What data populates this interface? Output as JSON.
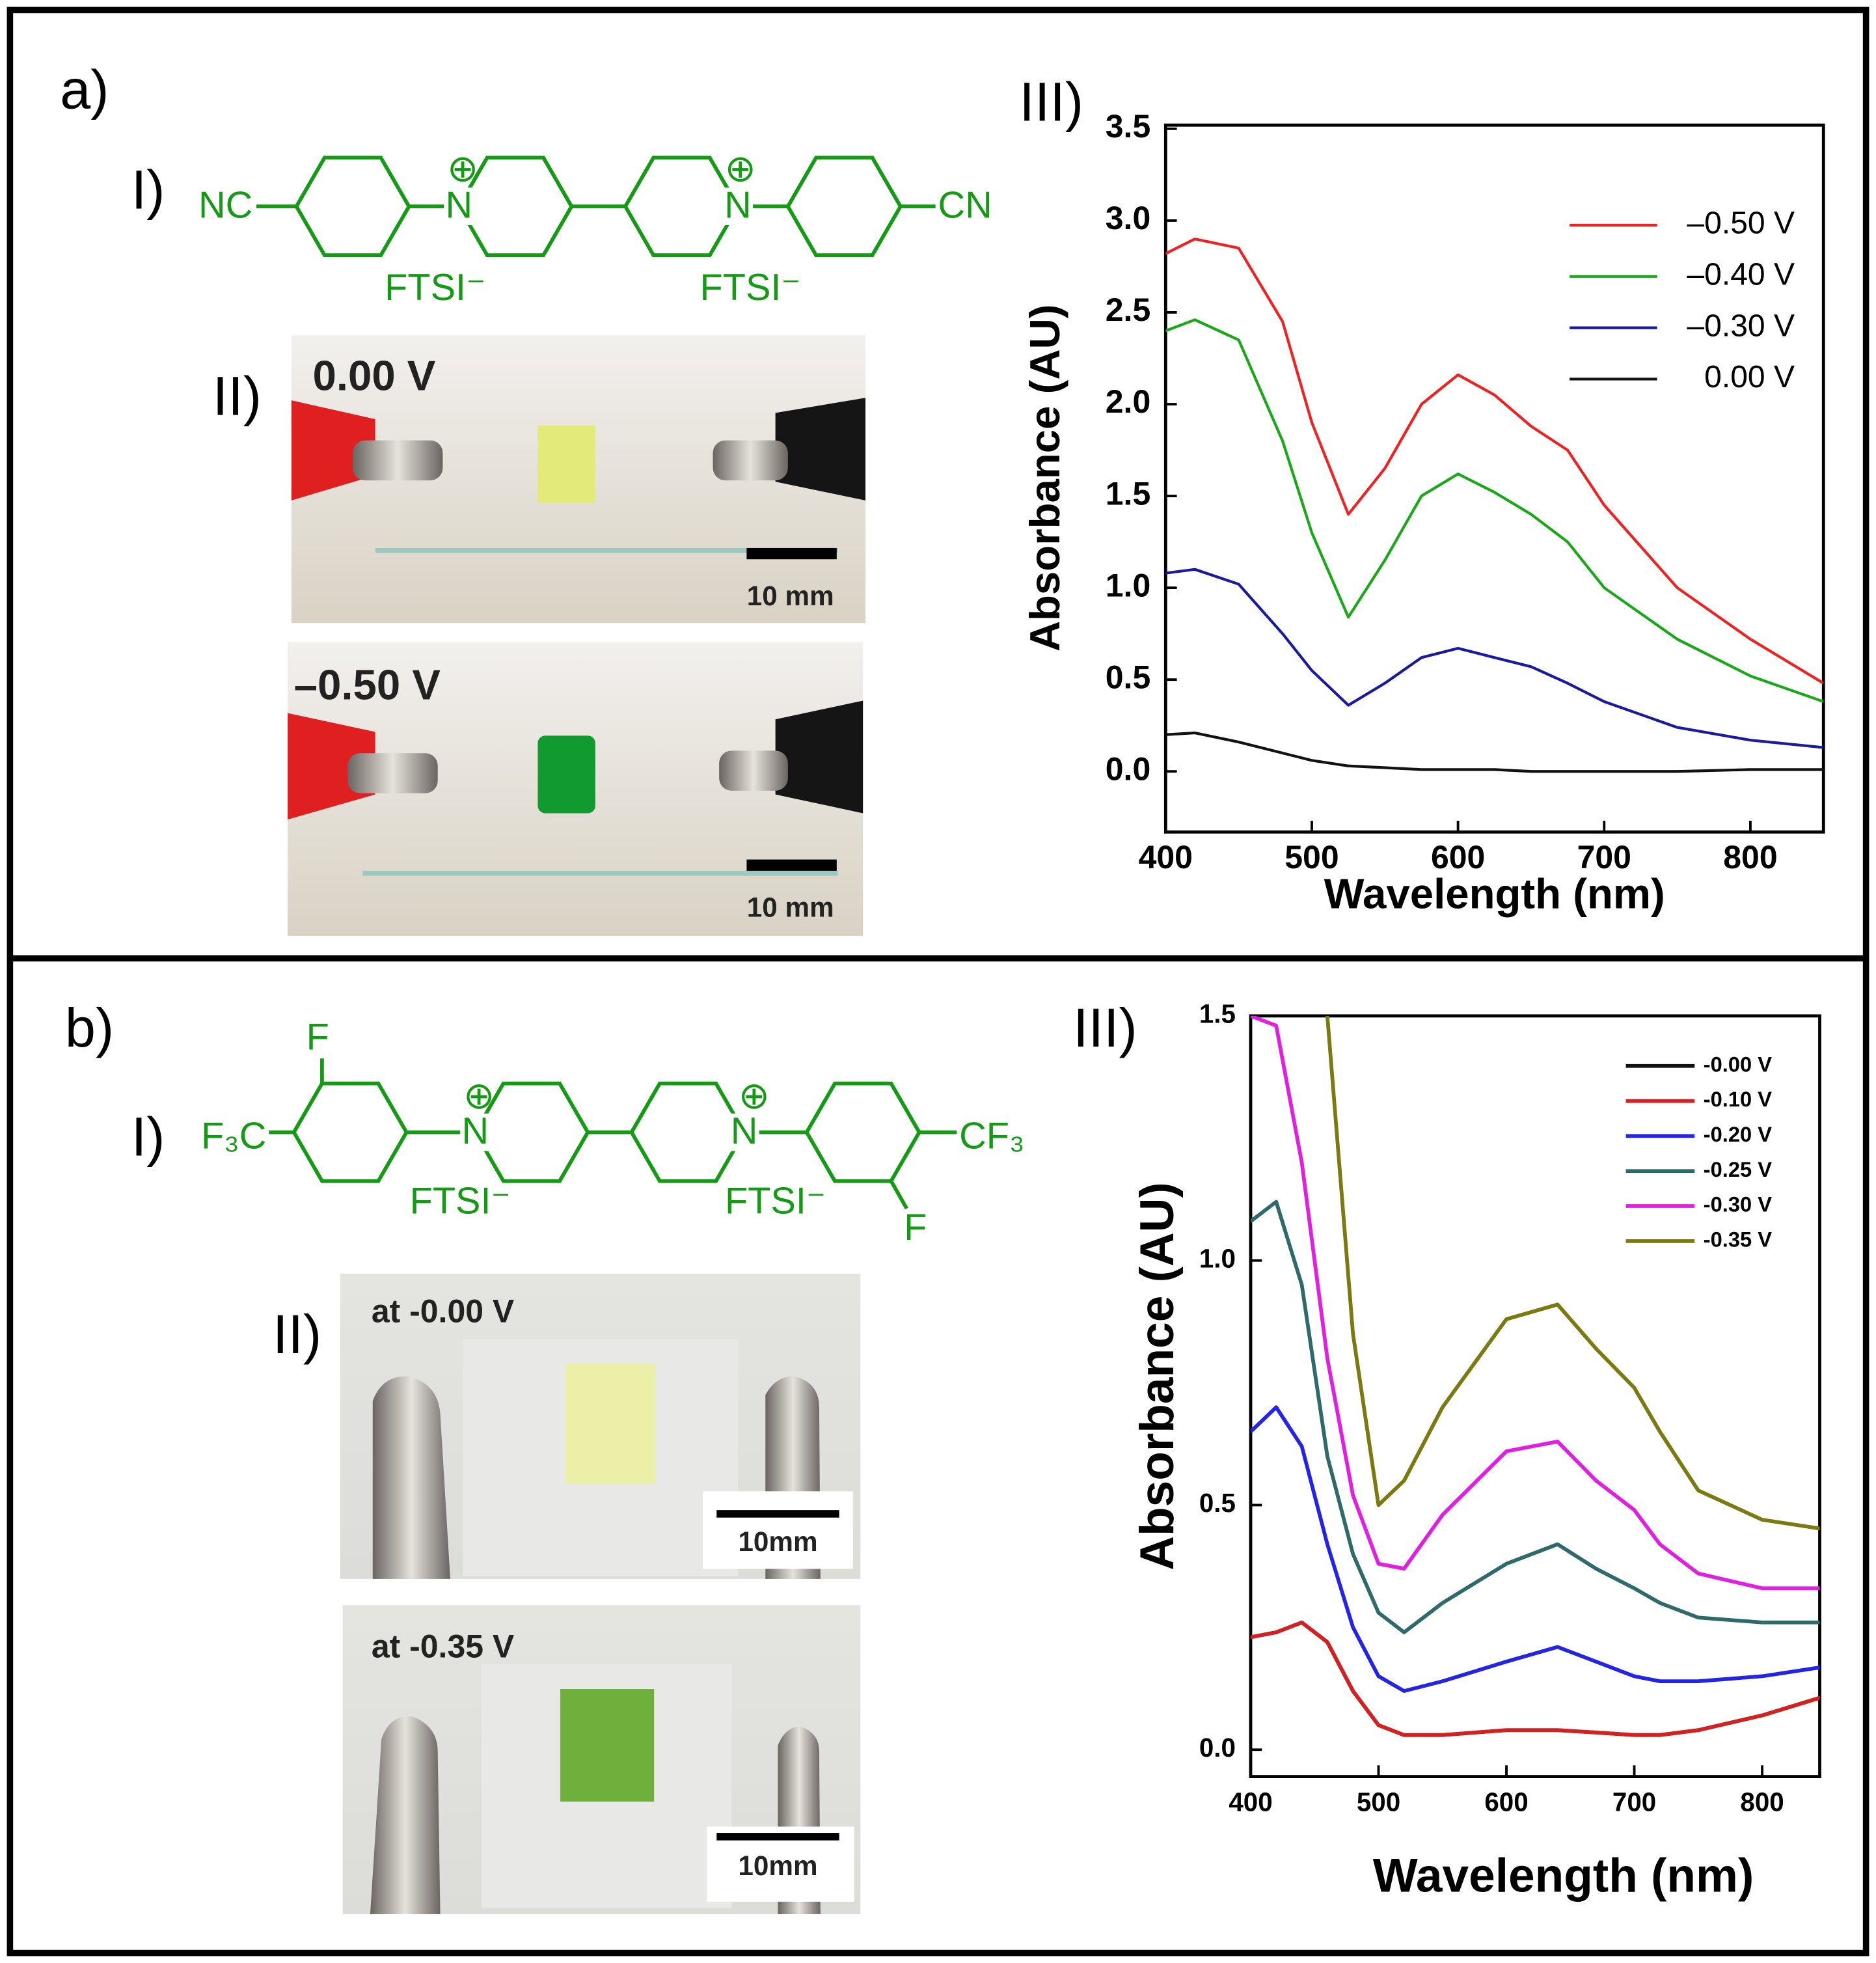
{
  "figure": {
    "panel_a": {
      "label": "a)",
      "part1": "I)",
      "part2": "II)",
      "part3": "III)",
      "structure": {
        "left": "NC",
        "right": "CN",
        "n1": "N",
        "n2": "N",
        "charge1": "⊕",
        "charge2": "⊕",
        "anion1": "FTSI⁻",
        "anion2": "FTSI⁻"
      },
      "photos": [
        {
          "label": "0.00 V",
          "scale": "10 mm"
        },
        {
          "label": "–0.50 V",
          "scale": "10 mm"
        }
      ]
    },
    "panel_b": {
      "label": "b)",
      "part1": "I)",
      "part2": "II)",
      "part3": "III)",
      "structure": {
        "left": "F₃C",
        "right": "CF₃",
        "f1": "F",
        "f2": "F",
        "n1": "N",
        "n2": "N",
        "charge1": "⊕",
        "charge2": "⊕",
        "anion1": "FTSI⁻",
        "anion2": "FTSI⁻"
      },
      "photos": [
        {
          "label": "at -0.00 V",
          "scale": "10mm"
        },
        {
          "label": "at -0.35 V",
          "scale": "10mm"
        }
      ]
    }
  },
  "chart_data": [
    {
      "type": "line",
      "x_label": "Wavelength (nm)",
      "y_label": "Absorbance (AU)",
      "x": [
        400,
        420,
        450,
        480,
        500,
        525,
        550,
        575,
        600,
        625,
        650,
        675,
        700,
        750,
        800,
        850
      ],
      "series": [
        {
          "name": "–0.50 V",
          "color": "#ee2222",
          "values": [
            2.82,
            2.9,
            2.85,
            2.45,
            1.9,
            1.4,
            1.65,
            2.0,
            2.16,
            2.05,
            1.88,
            1.75,
            1.45,
            1.0,
            0.72,
            0.48
          ]
        },
        {
          "name": "–0.40 V",
          "color": "#18a818",
          "values": [
            2.4,
            2.46,
            2.35,
            1.8,
            1.3,
            0.84,
            1.15,
            1.5,
            1.62,
            1.52,
            1.4,
            1.25,
            1.0,
            0.72,
            0.52,
            0.38
          ]
        },
        {
          "name": "–0.30 V",
          "color": "#1a1aa0",
          "values": [
            1.08,
            1.1,
            1.02,
            0.75,
            0.55,
            0.36,
            0.48,
            0.62,
            0.67,
            0.62,
            0.57,
            0.48,
            0.38,
            0.24,
            0.17,
            0.13
          ]
        },
        {
          "name": "0.00 V",
          "color": "#111111",
          "values": [
            0.2,
            0.21,
            0.16,
            0.1,
            0.06,
            0.03,
            0.02,
            0.01,
            0.01,
            0.01,
            0.0,
            0.0,
            0.0,
            0.0,
            0.01,
            0.01
          ]
        }
      ],
      "xlim": [
        400,
        850
      ],
      "ylim": [
        -0.33,
        3.52
      ],
      "xticks": [
        400,
        500,
        600,
        700,
        800
      ],
      "yticks": [
        {
          "value": 0,
          "label": "0.0"
        },
        0.5,
        {
          "value": 1,
          "label": "1.0"
        },
        1.5,
        {
          "value": 2,
          "label": "2.0"
        },
        2.5,
        {
          "value": 3,
          "label": "3.0"
        },
        3.5
      ],
      "legend": "upper right"
    },
    {
      "type": "line",
      "x_label": "Wavelength (nm)",
      "y_label": "Absorbance (AU)",
      "x": [
        400,
        420,
        440,
        460,
        480,
        500,
        520,
        550,
        600,
        640,
        670,
        700,
        720,
        750,
        800,
        850
      ],
      "series": [
        {
          "name": "-0.00 V",
          "color": "#111111",
          "values": [
            0.23,
            0.24,
            0.26,
            0.22,
            0.12,
            0.05,
            0.03,
            0.03,
            0.04,
            0.04,
            0.035,
            0.03,
            0.03,
            0.04,
            0.07,
            0.11
          ]
        },
        {
          "name": "-0.10 V",
          "color": "#d42020",
          "values": [
            0.23,
            0.24,
            0.26,
            0.22,
            0.12,
            0.05,
            0.03,
            0.03,
            0.04,
            0.04,
            0.035,
            0.03,
            0.03,
            0.04,
            0.07,
            0.11
          ]
        },
        {
          "name": "-0.20 V",
          "color": "#2424e6",
          "values": [
            0.65,
            0.7,
            0.62,
            0.42,
            0.25,
            0.15,
            0.12,
            0.14,
            0.18,
            0.21,
            0.18,
            0.15,
            0.14,
            0.14,
            0.15,
            0.17
          ]
        },
        {
          "name": "-0.25 V",
          "color": "#2e6a6a",
          "values": [
            1.08,
            1.12,
            0.95,
            0.6,
            0.4,
            0.28,
            0.24,
            0.3,
            0.38,
            0.42,
            0.37,
            0.33,
            0.3,
            0.27,
            0.26,
            0.26
          ]
        },
        {
          "name": "-0.30 V",
          "color": "#e020e0",
          "values": [
            1.5,
            1.48,
            1.2,
            0.8,
            0.52,
            0.38,
            0.37,
            0.48,
            0.61,
            0.63,
            0.55,
            0.49,
            0.42,
            0.36,
            0.33,
            0.33
          ]
        },
        {
          "name": "-0.35 V",
          "color": "#7a7a10",
          "values": [
            null,
            null,
            null,
            1.5,
            0.85,
            0.5,
            0.55,
            0.7,
            0.88,
            0.91,
            0.82,
            0.74,
            0.65,
            0.53,
            0.47,
            0.45
          ]
        }
      ],
      "xlim": [
        400,
        845
      ],
      "ylim": [
        -0.055,
        1.5
      ],
      "xticks": [
        400,
        500,
        600,
        700,
        800
      ],
      "yticks": [
        {
          "value": 0,
          "label": "0.0"
        },
        0.5,
        {
          "value": 1,
          "label": "1.0"
        },
        1.5
      ],
      "legend": "upper right"
    }
  ]
}
